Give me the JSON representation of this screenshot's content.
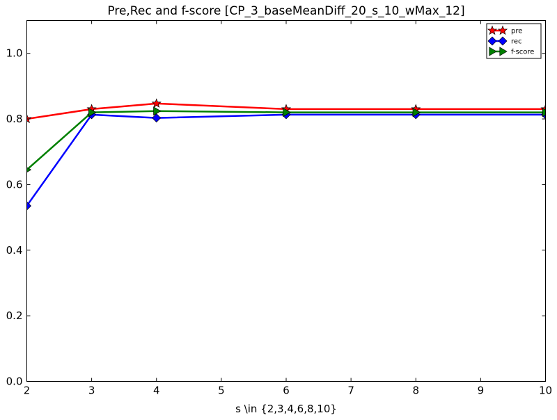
{
  "chart_data": {
    "type": "line",
    "title": "Pre,Rec and f-score [CP_3_baseMeanDiff_20_s_10_wMax_12]",
    "xlabel": "s \\in {2,3,4,6,8,10}",
    "ylabel": "",
    "xlim": [
      2,
      10
    ],
    "ylim": [
      0.0,
      1.1
    ],
    "xticks": [
      2,
      3,
      4,
      5,
      6,
      7,
      8,
      9,
      10
    ],
    "xtick_labels": [
      "2",
      "3",
      "4",
      "5",
      "6",
      "7",
      "8",
      "9",
      "10"
    ],
    "yticks": [
      0.0,
      0.2,
      0.4,
      0.6,
      0.8,
      1.0
    ],
    "ytick_labels": [
      "0.0",
      "0.2",
      "0.4",
      "0.6",
      "0.8",
      "1.0"
    ],
    "grid": false,
    "legend_position": "top-right",
    "x": [
      2,
      3,
      4,
      6,
      8,
      10
    ],
    "series": [
      {
        "name": "pre",
        "color": "#ff0000",
        "marker": "star",
        "values": [
          0.8,
          0.83,
          0.847,
          0.83,
          0.83,
          0.83
        ]
      },
      {
        "name": "rec",
        "color": "#0000ff",
        "marker": "diamond",
        "values": [
          0.535,
          0.813,
          0.803,
          0.813,
          0.813,
          0.813
        ]
      },
      {
        "name": "f-score",
        "color": "#008000",
        "marker": "triangle-right",
        "values": [
          0.645,
          0.82,
          0.824,
          0.82,
          0.82,
          0.82
        ]
      }
    ]
  }
}
